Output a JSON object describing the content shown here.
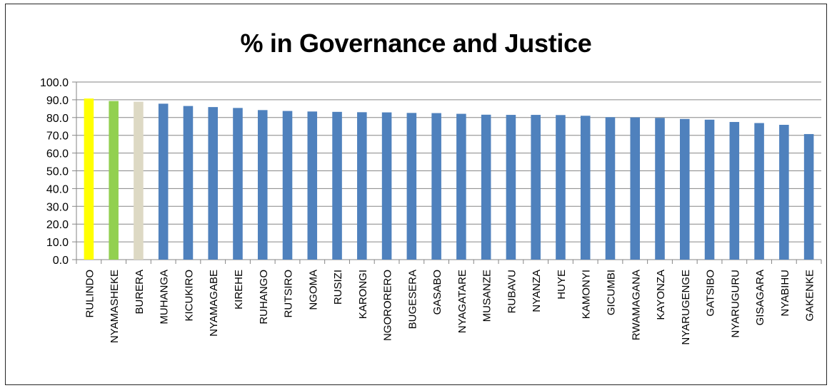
{
  "chart_data": {
    "type": "bar",
    "title": "% in Governance and Justice",
    "xlabel": "",
    "ylabel": "",
    "ylim": [
      0,
      100
    ],
    "ytick_step": 10,
    "ytick_labels": [
      "0.0",
      "10.0",
      "20.0",
      "30.0",
      "40.0",
      "50.0",
      "60.0",
      "70.0",
      "80.0",
      "90.0",
      "100.0"
    ],
    "grid": true,
    "legend": "none",
    "categories": [
      "RULINDO",
      "NYAMASHEKE",
      "BURERA",
      "MUHANGA",
      "KICUKIRO",
      "NYAMAGABE",
      "KIREHE",
      "RUHANGO",
      "RUTSIRO",
      "NGOMA",
      "RUSIZI",
      "KARONGI",
      "NGORORERO",
      "BUGESERA",
      "GASABO",
      "NYAGATARE",
      "MUSANZE",
      "RUBAVU",
      "NYANZA",
      "HUYE",
      "KAMONYI",
      "GICUMBI",
      "RWAMAGANA",
      "KAYONZA",
      "NYARUGENGE",
      "GATSIBO",
      "NYARUGURU",
      "GISAGARA",
      "NYABIHU",
      "GAKENKE"
    ],
    "values": [
      90.7,
      89.3,
      88.9,
      87.8,
      86.5,
      85.9,
      85.4,
      84.2,
      83.7,
      83.4,
      83.2,
      83.0,
      82.9,
      82.6,
      82.5,
      82.1,
      81.6,
      81.5,
      81.5,
      81.4,
      81.0,
      80.2,
      80.1,
      79.8,
      79.2,
      78.8,
      77.5,
      76.9,
      75.9,
      70.7
    ],
    "colors": [
      "#ffff00",
      "#92d050",
      "#ddd9c4",
      "#4f81bd",
      "#4f81bd",
      "#4f81bd",
      "#4f81bd",
      "#4f81bd",
      "#4f81bd",
      "#4f81bd",
      "#4f81bd",
      "#4f81bd",
      "#4f81bd",
      "#4f81bd",
      "#4f81bd",
      "#4f81bd",
      "#4f81bd",
      "#4f81bd",
      "#4f81bd",
      "#4f81bd",
      "#4f81bd",
      "#4f81bd",
      "#4f81bd",
      "#4f81bd",
      "#4f81bd",
      "#4f81bd",
      "#4f81bd",
      "#4f81bd",
      "#4f81bd",
      "#4f81bd"
    ],
    "gridline_color": "#868686",
    "axis_color": "#868686"
  }
}
